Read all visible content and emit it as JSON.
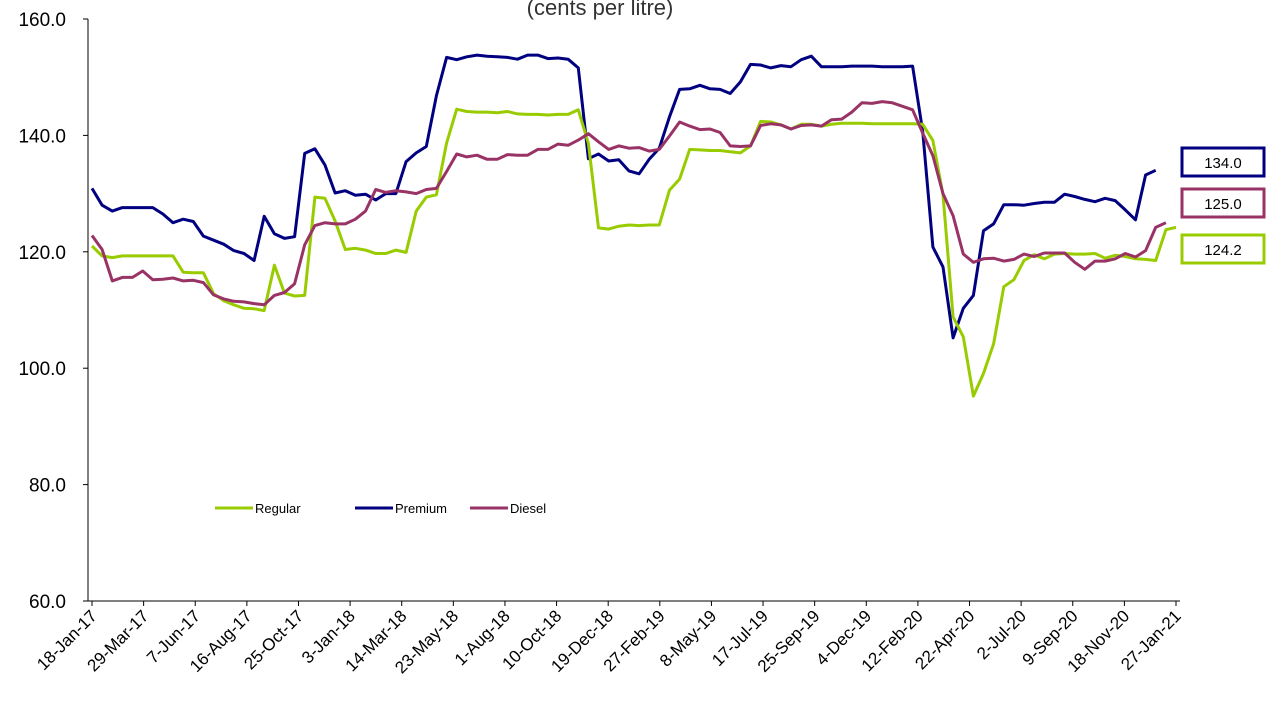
{
  "chart_data": {
    "type": "line",
    "title": "(cents per litre)",
    "ylim": [
      60,
      160
    ],
    "yticks": [
      "60.0",
      "80.0",
      "100.0",
      "120.0",
      "140.0",
      "160.0"
    ],
    "ytick_values": [
      60,
      80,
      100,
      120,
      140,
      160
    ],
    "xtick_labels": [
      "18-Jan-17",
      "29-Mar-17",
      "7-Jun-17",
      "16-Aug-17",
      "25-Oct-17",
      "3-Jan-18",
      "14-Mar-18",
      "23-May-18",
      "1-Aug-18",
      "10-Oct-18",
      "19-Dec-18",
      "27-Feb-19",
      "8-May-19",
      "17-Jul-19",
      "25-Sep-19",
      "4-Dec-19",
      "12-Feb-20",
      "22-Apr-20",
      "2-Jul-20",
      "9-Sep-20",
      "18-Nov-20",
      "27-Jan-21"
    ],
    "x_start": "18-Jan-17",
    "x_step": "1 week",
    "grid": false,
    "legend": {
      "placement": "center-left",
      "entries": [
        "Regular",
        "Premium",
        "Diesel"
      ]
    },
    "series": [
      {
        "name": "Regular",
        "color": "#99cc00",
        "end_label": "124.2",
        "values": [
          121.0,
          119.3,
          119.0,
          119.3,
          119.3,
          119.3,
          119.3,
          119.3,
          119.3,
          116.5,
          116.4,
          116.4,
          112.8,
          111.6,
          110.9,
          110.3,
          110.2,
          109.9,
          117.7,
          112.9,
          112.4,
          112.5,
          129.4,
          129.2,
          125.3,
          120.4,
          120.6,
          120.3,
          119.7,
          119.7,
          120.3,
          119.9,
          127.0,
          129.4,
          129.8,
          138.7,
          144.5,
          144.1,
          144.0,
          144.0,
          143.9,
          144.1,
          143.7,
          143.6,
          143.6,
          143.5,
          143.6,
          143.6,
          144.4,
          138.6,
          124.1,
          123.9,
          124.4,
          124.6,
          124.5,
          124.6,
          124.6,
          130.6,
          132.5,
          137.6,
          137.5,
          137.4,
          137.4,
          137.2,
          137.0,
          138.2,
          142.4,
          142.3,
          141.8,
          141.1,
          141.9,
          141.9,
          141.6,
          141.9,
          142.1,
          142.1,
          142.1,
          142.0,
          142.0,
          142.0,
          142.0,
          142.0,
          141.9,
          139.1,
          129.8,
          108.8,
          105.4,
          95.2,
          99.1,
          104.2,
          114.0,
          115.2,
          118.5,
          119.5,
          118.8,
          119.6,
          119.7,
          119.6,
          119.6,
          119.7,
          118.9,
          119.4,
          119.2,
          118.8,
          118.7,
          118.5,
          123.8,
          124.2
        ]
      },
      {
        "name": "Premium",
        "color": "#000080",
        "end_label": "134.0",
        "values": [
          130.9,
          128.0,
          127.0,
          127.6,
          127.6,
          127.6,
          127.6,
          126.5,
          125.0,
          125.6,
          125.2,
          122.7,
          122.0,
          121.3,
          120.2,
          119.7,
          118.5,
          126.1,
          123.1,
          122.3,
          122.6,
          136.9,
          137.7,
          134.9,
          130.1,
          130.5,
          129.7,
          129.9,
          128.9,
          130.0,
          130.0,
          135.5,
          137.0,
          138.1,
          146.8,
          153.4,
          153.0,
          153.5,
          153.8,
          153.6,
          153.5,
          153.4,
          153.1,
          153.8,
          153.8,
          153.2,
          153.3,
          153.1,
          151.6,
          136.0,
          136.8,
          135.6,
          135.8,
          133.9,
          133.4,
          135.9,
          137.8,
          143.2,
          147.9,
          148.0,
          148.6,
          148.0,
          147.9,
          147.2,
          149.2,
          152.2,
          152.1,
          151.6,
          152.0,
          151.8,
          153.0,
          153.6,
          151.8,
          151.8,
          151.8,
          151.9,
          151.9,
          151.9,
          151.8,
          151.8,
          151.8,
          151.9,
          140.7,
          120.8,
          117.4,
          105.2,
          110.3,
          112.5,
          123.6,
          124.8,
          128.1,
          128.1,
          128.0,
          128.3,
          128.5,
          128.5,
          129.9,
          129.5,
          129.0,
          128.6,
          129.2,
          128.8,
          127.2,
          125.5,
          133.2,
          134.0
        ]
      },
      {
        "name": "Diesel",
        "color": "#993366",
        "end_label": "125.0",
        "values": [
          122.8,
          120.4,
          115.0,
          115.6,
          115.6,
          116.7,
          115.2,
          115.3,
          115.5,
          115.0,
          115.1,
          114.7,
          112.6,
          111.9,
          111.5,
          111.4,
          111.1,
          110.9,
          112.5,
          113.0,
          114.5,
          121.2,
          124.5,
          125.0,
          124.8,
          124.8,
          125.6,
          127.0,
          130.7,
          130.2,
          130.5,
          130.3,
          130.0,
          130.7,
          130.9,
          133.8,
          136.8,
          136.3,
          136.6,
          135.9,
          135.9,
          136.7,
          136.6,
          136.6,
          137.6,
          137.6,
          138.5,
          138.3,
          139.2,
          140.3,
          138.9,
          137.6,
          138.2,
          137.8,
          137.9,
          137.3,
          137.6,
          139.9,
          142.3,
          141.6,
          141.0,
          141.1,
          140.5,
          138.2,
          138.1,
          138.2,
          141.7,
          142.0,
          141.8,
          141.1,
          141.7,
          141.8,
          141.6,
          142.7,
          142.8,
          144.0,
          145.6,
          145.5,
          145.8,
          145.6,
          145.0,
          144.4,
          140.4,
          136.5,
          130.0,
          126.2,
          119.6,
          118.2,
          118.8,
          118.9,
          118.4,
          118.7,
          119.6,
          119.2,
          119.8,
          119.8,
          119.8,
          118.2,
          117.0,
          118.4,
          118.4,
          118.8,
          119.7,
          119.1,
          120.2,
          124.2,
          125.0
        ]
      }
    ]
  }
}
